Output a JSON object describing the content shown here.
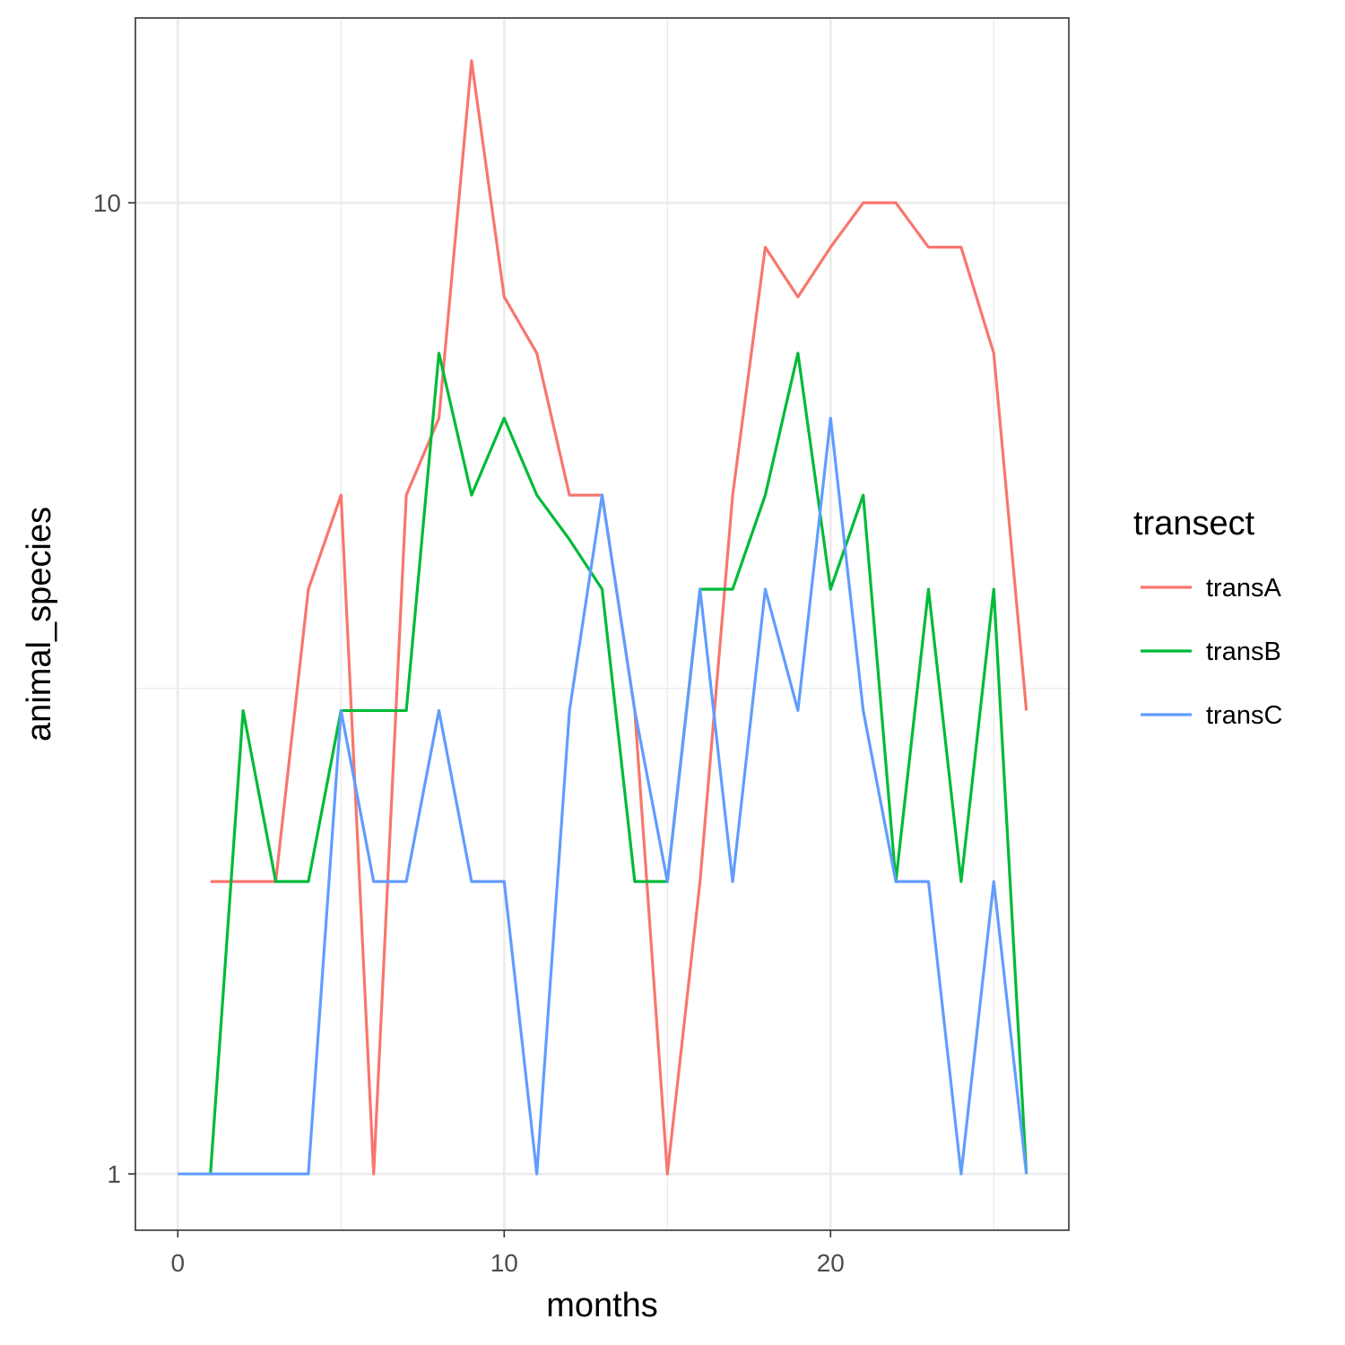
{
  "chart_data": {
    "type": "line",
    "xlabel": "months",
    "ylabel": "animal_species",
    "x_scale": "linear",
    "y_scale": "log10",
    "xlim": [
      -1.3,
      27.3
    ],
    "ylim": [
      0.875,
      15.5
    ],
    "x_ticks": [
      0,
      10,
      20
    ],
    "x_tick_labels": [
      "0",
      "10",
      "20"
    ],
    "x_minor_ticks": [
      5,
      15,
      25
    ],
    "y_ticks": [
      1,
      10
    ],
    "y_tick_labels": [
      "1",
      "10"
    ],
    "y_minor_ticks": [
      3.162
    ],
    "grid": true,
    "legend": {
      "title": "transect",
      "position": "right"
    },
    "series": [
      {
        "name": "transA",
        "color": "#F8766D",
        "x": [
          1,
          2,
          3,
          4,
          5,
          6,
          7,
          8,
          9,
          10,
          11,
          12,
          13,
          14,
          15,
          16,
          17,
          18,
          19,
          20,
          21,
          22,
          23,
          24,
          25,
          26
        ],
        "y": [
          2,
          2,
          2,
          4,
          5,
          1,
          5,
          6,
          14,
          8,
          7,
          5,
          5,
          3,
          1,
          2,
          5,
          9,
          8,
          9,
          10,
          10,
          9,
          9,
          7,
          3
        ]
      },
      {
        "name": "transB",
        "color": "#00BA38",
        "x": [
          1,
          2,
          3,
          4,
          5,
          6,
          7,
          8,
          9,
          10,
          11,
          12,
          13,
          14,
          15,
          16,
          17,
          18,
          19,
          20,
          21,
          22,
          23,
          24,
          25,
          26
        ],
        "y": [
          1,
          3,
          2,
          2,
          3,
          3,
          3,
          7,
          5,
          6,
          5,
          4.5,
          4,
          2,
          2,
          4,
          4,
          5,
          7,
          4,
          5,
          2,
          4,
          2,
          4,
          1
        ]
      },
      {
        "name": "transC",
        "color": "#619CFF",
        "x": [
          0,
          1,
          2,
          3,
          4,
          5,
          6,
          7,
          8,
          9,
          10,
          11,
          12,
          13,
          14,
          15,
          16,
          17,
          18,
          19,
          20,
          21,
          22,
          23,
          24,
          25,
          26
        ],
        "y": [
          1,
          1,
          1,
          1,
          1,
          3,
          2,
          2,
          3,
          2,
          2,
          1,
          3,
          5,
          3,
          2,
          4,
          2,
          4,
          3,
          6,
          3,
          2,
          2,
          1,
          2,
          1
        ]
      }
    ]
  }
}
